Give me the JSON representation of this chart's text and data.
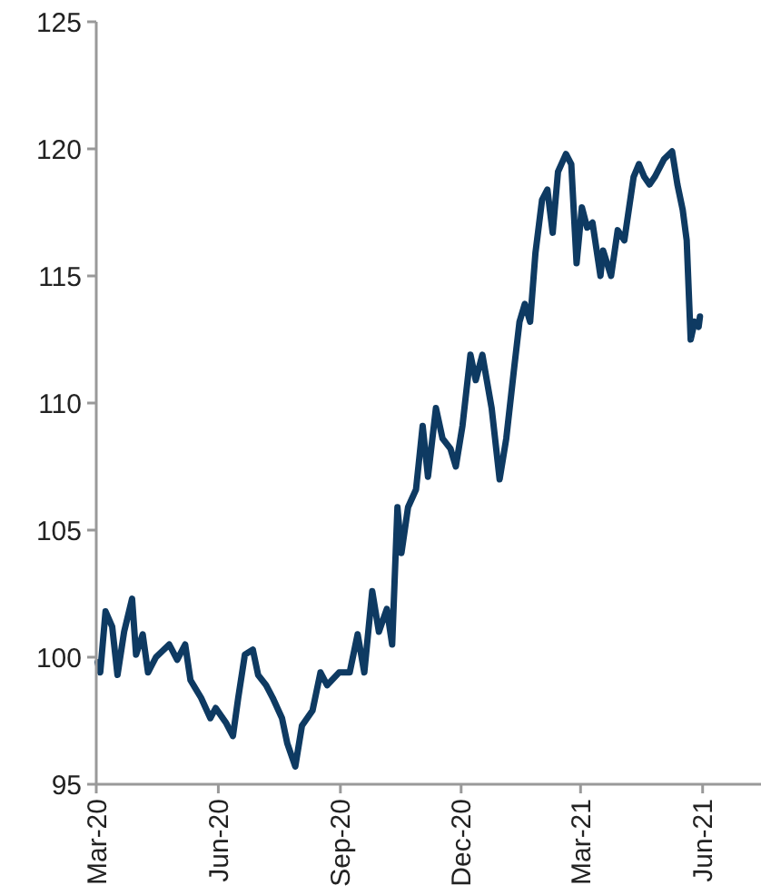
{
  "chart_data": {
    "type": "line",
    "grid": false,
    "line_style": "solid",
    "xlim": [
      "2020-03-01",
      "2021-07-15"
    ],
    "xticks": [
      {
        "value": "2020-03-01",
        "label": "Mar-20"
      },
      {
        "value": "2020-06-01",
        "label": "Jun-20"
      },
      {
        "value": "2020-09-01",
        "label": "Sep-20"
      },
      {
        "value": "2020-12-01",
        "label": "Dec-20"
      },
      {
        "value": "2021-03-01",
        "label": "Mar-21"
      },
      {
        "value": "2021-06-01",
        "label": "Jun-21"
      }
    ],
    "ylim": [
      95,
      125
    ],
    "yticks": [
      95,
      100,
      105,
      110,
      115,
      120,
      125
    ],
    "series": [
      {
        "color": "#0e3a62",
        "x": [
          "2020-03-02",
          "2020-03-04",
          "2020-03-08",
          "2020-03-13",
          "2020-03-17",
          "2020-03-22",
          "2020-03-28",
          "2020-03-31",
          "2020-04-05",
          "2020-04-09",
          "2020-04-15",
          "2020-04-25",
          "2020-05-01",
          "2020-05-07",
          "2020-05-11",
          "2020-05-19",
          "2020-05-26",
          "2020-05-30",
          "2020-06-07",
          "2020-06-12",
          "2020-06-16",
          "2020-06-21",
          "2020-06-27",
          "2020-07-01",
          "2020-07-07",
          "2020-07-12",
          "2020-07-19",
          "2020-07-23",
          "2020-07-29",
          "2020-08-03",
          "2020-08-11",
          "2020-08-17",
          "2020-08-22",
          "2020-08-31",
          "2020-09-08",
          "2020-09-14",
          "2020-09-19",
          "2020-09-25",
          "2020-09-30",
          "2020-10-06",
          "2020-10-10",
          "2020-10-14",
          "2020-10-17",
          "2020-10-22",
          "2020-10-28",
          "2020-11-02",
          "2020-11-06",
          "2020-11-12",
          "2020-11-17",
          "2020-11-23",
          "2020-11-27",
          "2020-12-02",
          "2020-12-08",
          "2020-12-12",
          "2020-12-17",
          "2020-12-24",
          "2020-12-30",
          "2021-01-04",
          "2021-01-10",
          "2021-01-14",
          "2021-01-18",
          "2021-01-22",
          "2021-01-26",
          "2021-01-31",
          "2021-02-04",
          "2021-02-08",
          "2021-02-12",
          "2021-02-18",
          "2021-02-22",
          "2021-02-26",
          "2021-03-02",
          "2021-03-06",
          "2021-03-10",
          "2021-03-16",
          "2021-03-18",
          "2021-03-24",
          "2021-03-29",
          "2021-04-03",
          "2021-04-10",
          "2021-04-14",
          "2021-04-18",
          "2021-04-22",
          "2021-04-26",
          "2021-05-03",
          "2021-05-09",
          "2021-05-13",
          "2021-05-17",
          "2021-05-20",
          "2021-05-23",
          "2021-05-26",
          "2021-05-29",
          "2021-05-30"
        ],
        "values": [
          99.8,
          99.4,
          101.8,
          101.2,
          99.3,
          101,
          102.3,
          100.1,
          100.9,
          99.4,
          100,
          100.5,
          99.9,
          100.5,
          99.1,
          98.4,
          97.6,
          98,
          97.4,
          96.9,
          98.4,
          100.1,
          100.3,
          99.3,
          98.9,
          98.4,
          97.6,
          96.6,
          95.7,
          97.3,
          97.9,
          99.4,
          98.9,
          99.4,
          99.4,
          100.9,
          99.4,
          102.6,
          101,
          101.9,
          100.5,
          105.9,
          104.1,
          105.9,
          106.6,
          109.1,
          107.1,
          109.8,
          108.6,
          108.2,
          107.5,
          109.1,
          111.9,
          110.9,
          111.9,
          109.8,
          107,
          108.6,
          111.4,
          113.2,
          113.9,
          113.2,
          115.9,
          118,
          118.4,
          116.7,
          119.1,
          119.8,
          119.4,
          115.5,
          117.7,
          116.9,
          117.1,
          115,
          116,
          115,
          116.8,
          116.4,
          118.9,
          119.4,
          118.9,
          118.6,
          118.9,
          119.6,
          119.9,
          118.6,
          117.6,
          116.4,
          112.5,
          113.2,
          113,
          113.4
        ]
      }
    ]
  }
}
